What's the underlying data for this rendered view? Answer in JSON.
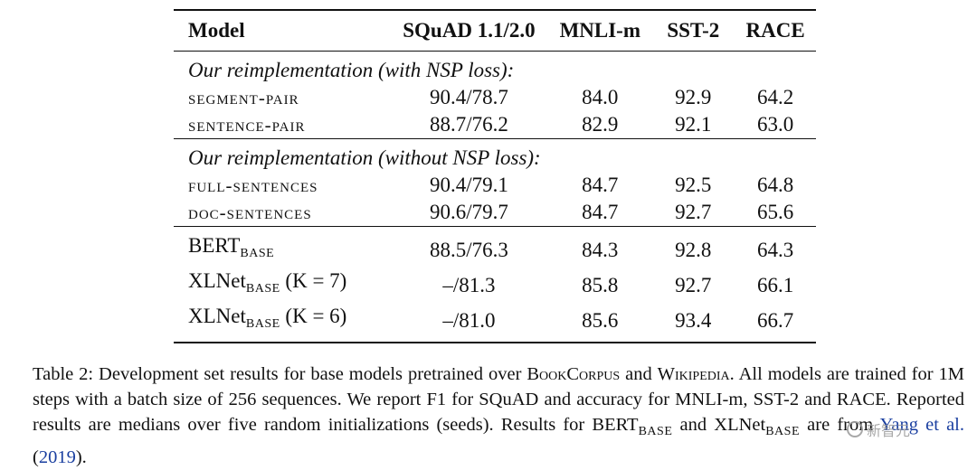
{
  "table": {
    "headers": [
      "Model",
      "SQuAD 1.1/2.0",
      "MNLI-m",
      "SST-2",
      "RACE"
    ],
    "groups": [
      {
        "title": "Our reimplementation (with NSP loss):",
        "rows": [
          {
            "model": "segment-pair",
            "squad": "90.4/78.7",
            "mnli": "84.0",
            "sst2": "92.9",
            "race": "64.2"
          },
          {
            "model": "sentence-pair",
            "squad": "88.7/76.2",
            "mnli": "82.9",
            "sst2": "92.1",
            "race": "63.0"
          }
        ]
      },
      {
        "title": "Our reimplementation (without NSP loss):",
        "rows": [
          {
            "model": "full-sentences",
            "squad": "90.4/79.1",
            "mnli": "84.7",
            "sst2": "92.5",
            "race": "64.8"
          },
          {
            "model": "doc-sentences",
            "squad": "90.6/79.7",
            "mnli": "84.7",
            "sst2": "92.7",
            "race": "65.6"
          }
        ]
      }
    ],
    "baselines": [
      {
        "model_main": "BERT",
        "model_sub": "BASE",
        "model_suffix": "",
        "squad": "88.5/76.3",
        "mnli": "84.3",
        "sst2": "92.8",
        "race": "64.3"
      },
      {
        "model_main": "XLNet",
        "model_sub": "BASE",
        "model_suffix": " (K = 7)",
        "squad": "–/81.3",
        "mnli": "85.8",
        "sst2": "92.7",
        "race": "66.1"
      },
      {
        "model_main": "XLNet",
        "model_sub": "BASE",
        "model_suffix": " (K = 6)",
        "squad": "–/81.0",
        "mnli": "85.6",
        "sst2": "93.4",
        "race": "66.7"
      }
    ]
  },
  "caption": {
    "p1": "Table 2: Development set results for base models pretrained over ",
    "bookcorpus": "BookCorpus",
    "p2": " and ",
    "wikipedia": "Wikipedia",
    "p3": ". All models are trained for 1M steps with a batch size of 256 sequences. We report F1 for SQuAD and accuracy for MNLI-m, SST-2 and RACE. Reported results are medians over five random initializations (seeds). Results for BERT",
    "sub1": "BASE",
    "p4": " and XLNet",
    "sub2": "BASE",
    "p5": " are from ",
    "cite_author": "Yang et al.",
    "p6": " (",
    "cite_year": "2019",
    "p7": ")."
  },
  "watermark": {
    "text": "新智元"
  }
}
